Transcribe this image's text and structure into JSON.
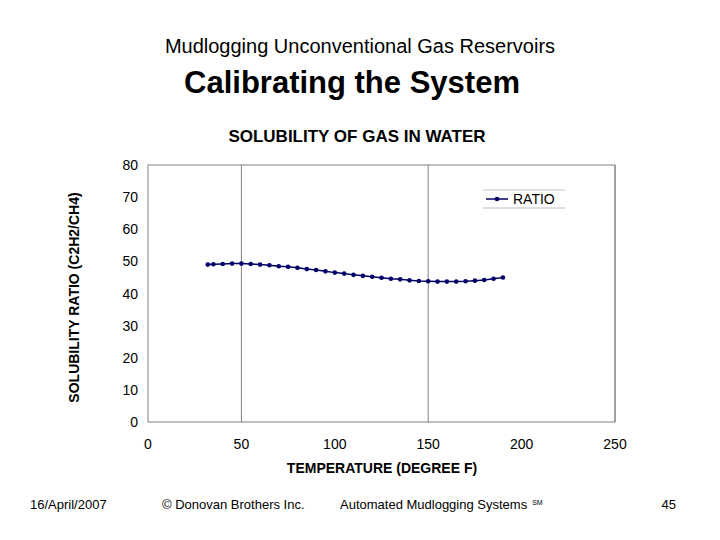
{
  "page": {
    "header": "Mudlogging Unconventional Gas Reservoirs",
    "heading": "Calibrating the System",
    "footer": {
      "date": "16/April/2007",
      "copyright": "© Donovan Brothers Inc.",
      "system": "Automated Mudlogging Systems",
      "service_mark": "SM",
      "page_number": "45"
    }
  },
  "chart_data": {
    "type": "line",
    "title": "SOLUBILITY OF GAS IN WATER",
    "x_label": "TEMPERATURE (DEGREE F)",
    "y_label": "SOLUBILITY RATIO (C2H2/CH4)",
    "x": [
      32,
      35,
      40,
      45,
      50,
      55,
      60,
      65,
      70,
      75,
      80,
      85,
      90,
      95,
      100,
      105,
      110,
      115,
      120,
      125,
      130,
      135,
      140,
      145,
      150,
      155,
      160,
      165,
      170,
      175,
      180,
      185,
      190
    ],
    "series": [
      {
        "name": "RATIO",
        "color": "#000066",
        "marker": "circle",
        "line_style": "solid",
        "values": [
          49.0,
          49.1,
          49.2,
          49.3,
          49.3,
          49.2,
          49.0,
          48.8,
          48.5,
          48.3,
          48.0,
          47.6,
          47.3,
          46.9,
          46.5,
          46.2,
          45.8,
          45.5,
          45.2,
          44.9,
          44.6,
          44.4,
          44.1,
          43.9,
          43.8,
          43.7,
          43.7,
          43.7,
          43.8,
          44.0,
          44.2,
          44.6,
          45.0
        ]
      }
    ],
    "xlim": [
      0,
      250
    ],
    "xticks": [
      0,
      50,
      100,
      150,
      200,
      250
    ],
    "ylim": [
      0,
      80
    ],
    "yticks": [
      0,
      10,
      20,
      30,
      40,
      50,
      60,
      70,
      80
    ],
    "grid": "x",
    "legend": "upper-right"
  }
}
